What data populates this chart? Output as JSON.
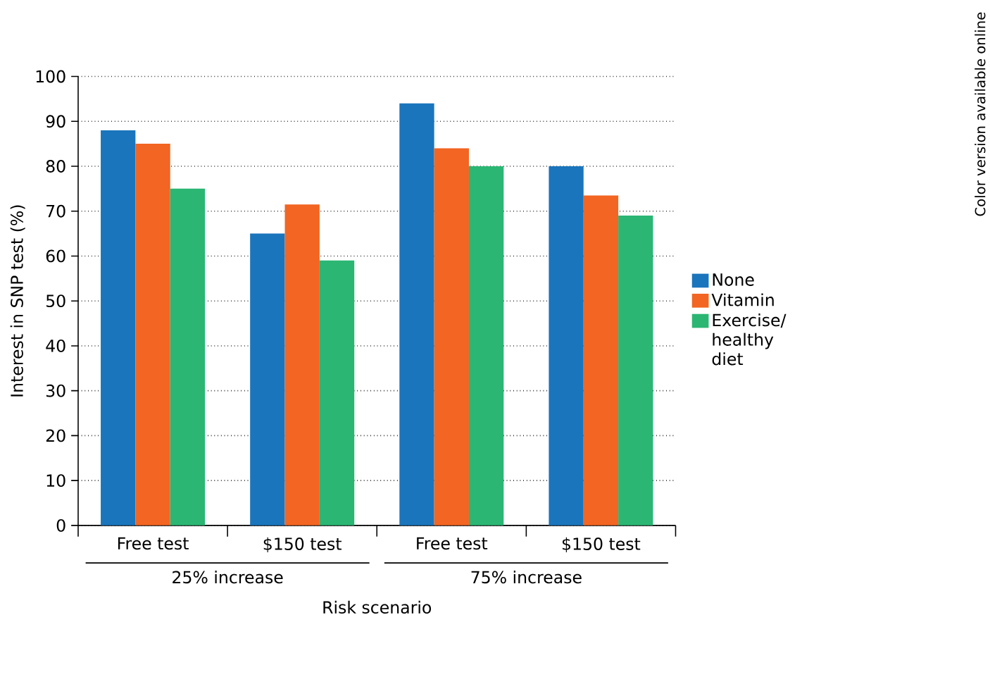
{
  "chart_data": {
    "type": "bar",
    "xlabel": "Risk scenario",
    "ylabel": "Interest in SNP test (%)",
    "categories": [
      "Free test",
      "$150 test",
      "Free test",
      "$150 test"
    ],
    "series": [
      {
        "name": "None",
        "color": "#1a75bc",
        "values": [
          88,
          65,
          94,
          80
        ]
      },
      {
        "name": "Vitamin",
        "color": "#f26522",
        "values": [
          85,
          71.5,
          84,
          73.5
        ]
      },
      {
        "name": "Exercise/ healthy diet",
        "color": "#2bb673",
        "values": [
          75,
          59,
          80,
          69
        ]
      }
    ],
    "ylim": [
      0,
      100
    ],
    "yticks": [
      0,
      10,
      20,
      30,
      40,
      50,
      60,
      70,
      80,
      90,
      100
    ],
    "grid": "y",
    "legend": "right",
    "annotations": [
      "25% increase",
      "75% increase",
      "Color version available online"
    ]
  }
}
